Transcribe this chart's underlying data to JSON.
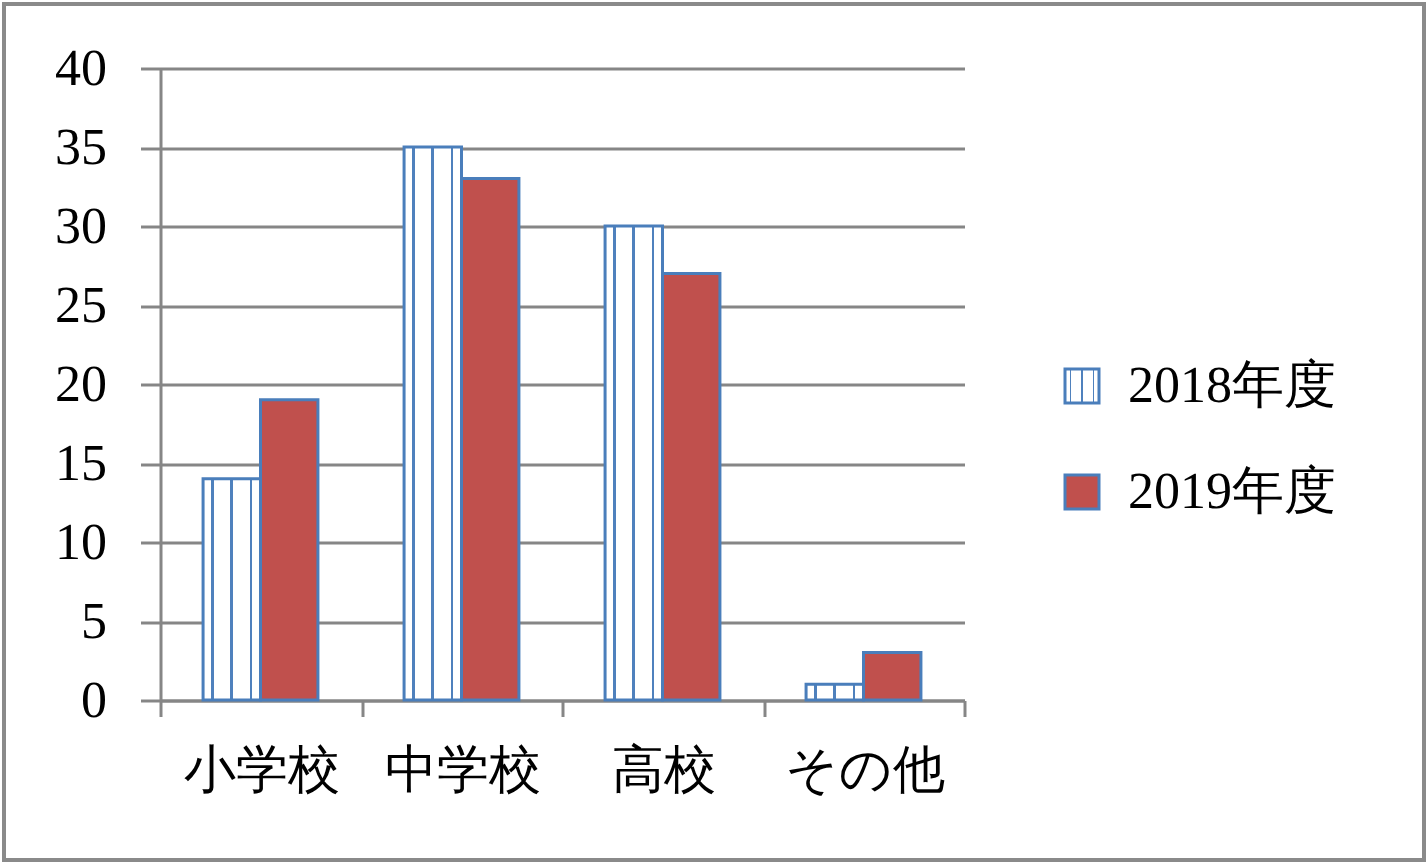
{
  "chart_data": {
    "type": "bar",
    "categories": [
      "小学校",
      "中学校",
      "高校",
      "その他"
    ],
    "series": [
      {
        "name": "2018年度",
        "color": "#4f81bd",
        "values": [
          14,
          35,
          30,
          1
        ]
      },
      {
        "name": "2019年度",
        "color": "#c0504d",
        "values": [
          19,
          33,
          27,
          3
        ]
      }
    ],
    "ylim": [
      0,
      40
    ],
    "yticks": [
      0,
      5,
      10,
      15,
      20,
      25,
      30,
      35,
      40
    ],
    "grid": "y",
    "legend": "right"
  }
}
